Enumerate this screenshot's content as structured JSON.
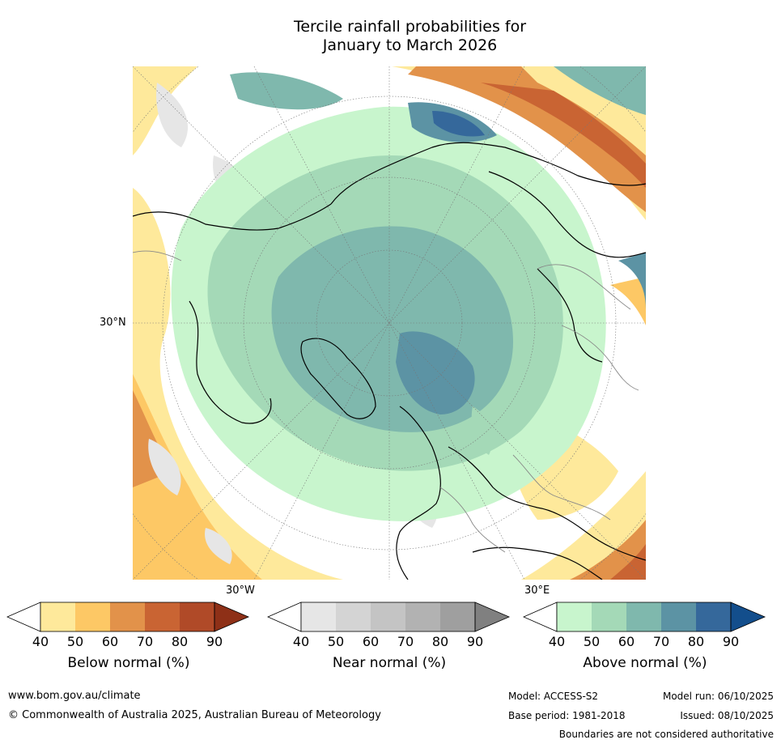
{
  "title_line1": "Tercile rainfall probabilities for",
  "title_line2": "January to March 2026",
  "map": {
    "lat_label": "30°N",
    "lon_label_west": "30°W",
    "lon_label_east": "30°E"
  },
  "colorbars": [
    {
      "label": "Below normal (%)",
      "ticks": [
        "40",
        "50",
        "60",
        "70",
        "80",
        "90"
      ],
      "colors": [
        "#ffffff",
        "#fee99b",
        "#fdc865",
        "#e2924a",
        "#c96433",
        "#b04a28",
        "#8e3017"
      ]
    },
    {
      "label": "Near normal (%)",
      "ticks": [
        "40",
        "50",
        "60",
        "70",
        "80",
        "90"
      ],
      "colors": [
        "#ffffff",
        "#e6e6e6",
        "#d4d4d4",
        "#c4c4c4",
        "#b2b2b2",
        "#9f9f9f",
        "#808080"
      ]
    },
    {
      "label": "Above normal (%)",
      "ticks": [
        "40",
        "50",
        "60",
        "70",
        "80",
        "90"
      ],
      "colors": [
        "#ffffff",
        "#c8f5cd",
        "#a4d9b7",
        "#7fb8ad",
        "#5c93a4",
        "#35689b",
        "#134e8c"
      ]
    }
  ],
  "footer": {
    "website": "www.bom.gov.au/climate",
    "copyright": "© Commonwealth of Australia 2025, Australian Bureau of Meteorology",
    "model": "Model: ACCESS-S2",
    "model_run": "Model run: 06/10/2025",
    "base_period": "Base period: 1981-2018",
    "issued": "Issued: 08/10/2025",
    "disclaimer": "Boundaries are not considered authoritative"
  }
}
